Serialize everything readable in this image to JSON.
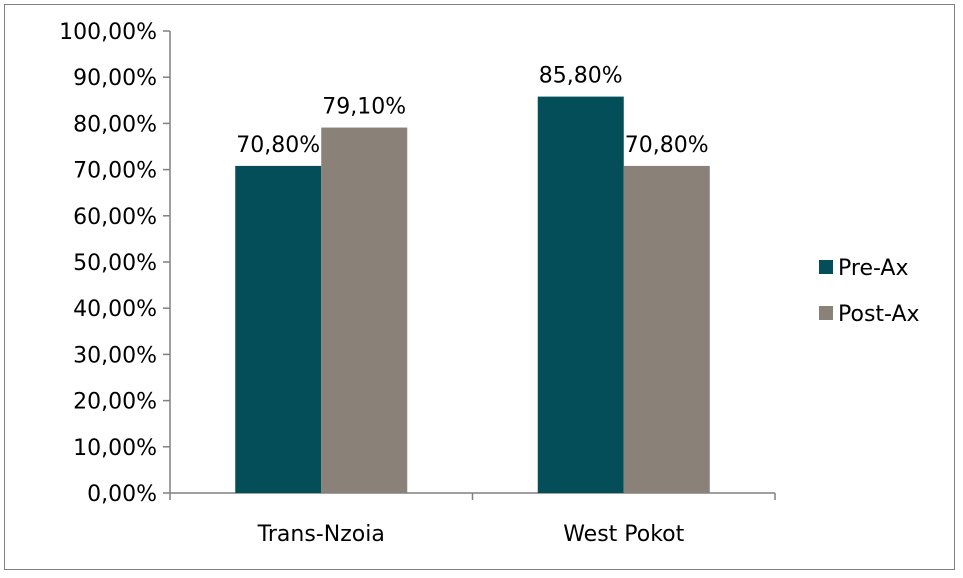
{
  "chart_data": {
    "type": "bar",
    "categories": [
      "Trans-Nzoia",
      "West Pokot"
    ],
    "series": [
      {
        "name": "Pre-Ax",
        "values": [
          70.8,
          85.8
        ],
        "labels": [
          "70,80%",
          "85,80%"
        ],
        "color": "#044E5A"
      },
      {
        "name": "Post-Ax",
        "values": [
          79.1,
          70.8
        ],
        "labels": [
          "79,10%",
          "70,80%"
        ],
        "color": "#8A8178"
      }
    ],
    "ylim": [
      0,
      100
    ],
    "yticks": [
      0,
      10,
      20,
      30,
      40,
      50,
      60,
      70,
      80,
      90,
      100
    ],
    "ytick_labels": [
      "0,00%",
      "10,00%",
      "20,00%",
      "30,00%",
      "40,00%",
      "50,00%",
      "60,00%",
      "70,00%",
      "80,00%",
      "90,00%",
      "100,00%"
    ],
    "grid": false,
    "legend_position": "right",
    "title": "",
    "xlabel": "",
    "ylabel": "",
    "axis_color": "#808080"
  }
}
